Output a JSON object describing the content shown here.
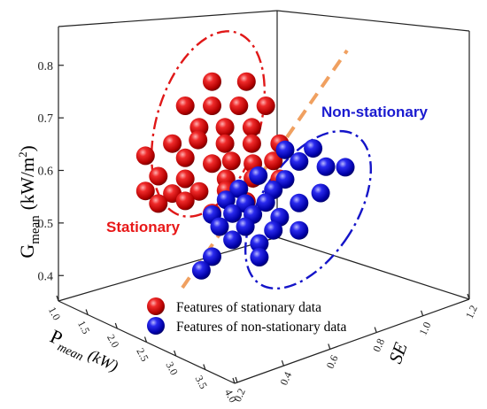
{
  "chart_data": {
    "type": "scatter",
    "dimensions": 3,
    "axes": {
      "z": {
        "label_main": "G",
        "label_sub": "mean",
        "label_unit": "(kW/m",
        "label_sup": "2",
        "label_close": ")",
        "ticks": [
          "0.4",
          "0.5",
          "0.6",
          "0.7",
          "0.8"
        ],
        "range": [
          0.36,
          0.84
        ]
      },
      "x": {
        "label_main": "P",
        "label_sub": "mean",
        "label_unit": "(kW)",
        "ticks": [
          "1.0",
          "1.5",
          "2.0",
          "2.5",
          "3.0",
          "3.5",
          "4.0"
        ],
        "range": [
          1.0,
          4.0
        ]
      },
      "y": {
        "label": "SE",
        "ticks": [
          "0.2",
          "0.4",
          "0.6",
          "0.8",
          "1.0",
          "1.2"
        ],
        "range": [
          0.2,
          1.2
        ]
      }
    },
    "series": [
      {
        "name": "Features of stationary data",
        "color": "#e01010",
        "cluster_label": "Stationary",
        "label_color": "#e81818",
        "points": [
          [
            2.43,
            0.5,
            0.769
          ],
          [
            2.75,
            0.5,
            0.769
          ],
          [
            2.18,
            0.5,
            0.723
          ],
          [
            2.43,
            0.5,
            0.723
          ],
          [
            2.68,
            0.5,
            0.723
          ],
          [
            2.93,
            0.5,
            0.723
          ],
          [
            2.31,
            0.5,
            0.682
          ],
          [
            2.55,
            0.5,
            0.682
          ],
          [
            2.8,
            0.5,
            0.682
          ],
          [
            2.06,
            0.5,
            0.651
          ],
          [
            2.3,
            0.5,
            0.658
          ],
          [
            2.55,
            0.5,
            0.651
          ],
          [
            2.8,
            0.5,
            0.651
          ],
          [
            3.06,
            0.5,
            0.651
          ],
          [
            1.81,
            0.5,
            0.628
          ],
          [
            2.18,
            0.5,
            0.624
          ],
          [
            2.43,
            0.5,
            0.613
          ],
          [
            2.61,
            0.5,
            0.618
          ],
          [
            2.81,
            0.5,
            0.613
          ],
          [
            3.0,
            0.5,
            0.618
          ],
          [
            1.93,
            0.5,
            0.589
          ],
          [
            2.18,
            0.5,
            0.584
          ],
          [
            2.56,
            0.5,
            0.584
          ],
          [
            2.81,
            0.5,
            0.585
          ],
          [
            3.06,
            0.5,
            0.584
          ],
          [
            1.81,
            0.5,
            0.561
          ],
          [
            2.06,
            0.5,
            0.556
          ],
          [
            2.31,
            0.5,
            0.56
          ],
          [
            2.56,
            0.5,
            0.562
          ],
          [
            1.93,
            0.5,
            0.537
          ],
          [
            2.18,
            0.5,
            0.542
          ],
          [
            2.43,
            0.5,
            0.519
          ],
          [
            2.75,
            0.5,
            0.541
          ]
        ]
      },
      {
        "name": "Features of non-stationary data",
        "color": "#1414c8",
        "cluster_label": "Non-stationary",
        "label_color": "#1a1ad0",
        "points": [
          [
            3.11,
            0.5,
            0.639
          ],
          [
            3.37,
            0.5,
            0.642
          ],
          [
            3.24,
            0.5,
            0.617
          ],
          [
            3.49,
            0.5,
            0.607
          ],
          [
            2.86,
            0.5,
            0.59
          ],
          [
            3.11,
            0.5,
            0.583
          ],
          [
            3.67,
            0.5,
            0.606
          ],
          [
            3.44,
            0.5,
            0.557
          ],
          [
            2.68,
            0.5,
            0.565
          ],
          [
            3.0,
            0.5,
            0.563
          ],
          [
            2.56,
            0.5,
            0.544
          ],
          [
            2.74,
            0.5,
            0.537
          ],
          [
            2.93,
            0.5,
            0.539
          ],
          [
            3.24,
            0.5,
            0.538
          ],
          [
            2.43,
            0.5,
            0.516
          ],
          [
            2.62,
            0.5,
            0.518
          ],
          [
            2.81,
            0.5,
            0.516
          ],
          [
            3.06,
            0.5,
            0.511
          ],
          [
            2.5,
            0.5,
            0.493
          ],
          [
            2.74,
            0.5,
            0.493
          ],
          [
            3.0,
            0.5,
            0.486
          ],
          [
            3.24,
            0.5,
            0.486
          ],
          [
            2.62,
            0.5,
            0.468
          ],
          [
            2.87,
            0.5,
            0.461
          ],
          [
            2.43,
            0.5,
            0.436
          ],
          [
            2.87,
            0.5,
            0.435
          ],
          [
            2.33,
            0.5,
            0.41
          ]
        ]
      }
    ],
    "legend": {
      "placement": "bottom-center"
    },
    "annotations": {
      "separator": "dashed-diagonal",
      "separator_color": "#f0a060",
      "ellipse_style": "dash-dot"
    }
  }
}
